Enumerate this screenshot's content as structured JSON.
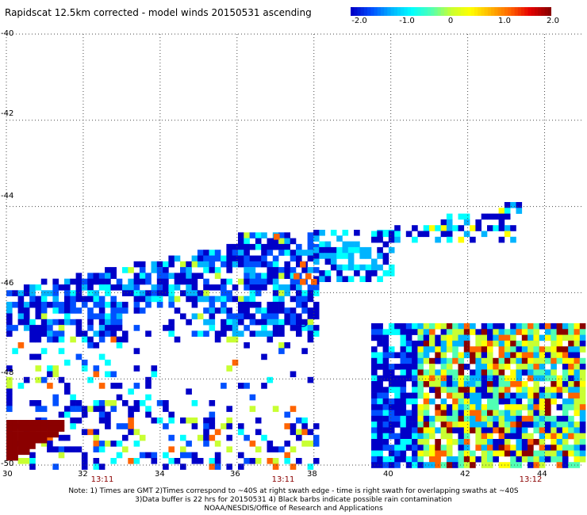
{
  "title": "Rapidscat 12.5km corrected - model winds 20150531 ascending",
  "colorbar": {
    "labels": [
      "-2.0",
      "-1.0",
      "0",
      "1.0",
      "2.0"
    ],
    "colors": [
      "#0000c8",
      "#0050ff",
      "#00b4ff",
      "#00ffff",
      "#50ffb4",
      "#c8ff32",
      "#ffff00",
      "#ffb400",
      "#ff6400",
      "#e60000",
      "#8b0000"
    ]
  },
  "map": {
    "lon_range": [
      30,
      45
    ],
    "lat_range": [
      -50,
      -40
    ],
    "lon_ticks": [
      "30",
      "32",
      "34",
      "36",
      "38",
      "40",
      "42",
      "44"
    ],
    "lat_ticks": [
      "-40",
      "-42",
      "-44",
      "-46",
      "-48",
      "-50"
    ],
    "time_labels": [
      {
        "text": "13:11",
        "lon": 32.6
      },
      {
        "text": "13:11",
        "lon": 37.3
      },
      {
        "text": "13:12",
        "lon": 43.5
      }
    ],
    "grid": true
  },
  "footer": {
    "line1": "Note: 1) Times are GMT 2)Times correspond to ~40S at right swath edge - time is right swath for overlapping swaths at ~40S",
    "line2": "3)Data buffer is 22 hrs for 20150531 4) Black barbs indicate possible rain contamination",
    "line3": "NOAA/NESDIS/Office of Research and Applications"
  }
}
